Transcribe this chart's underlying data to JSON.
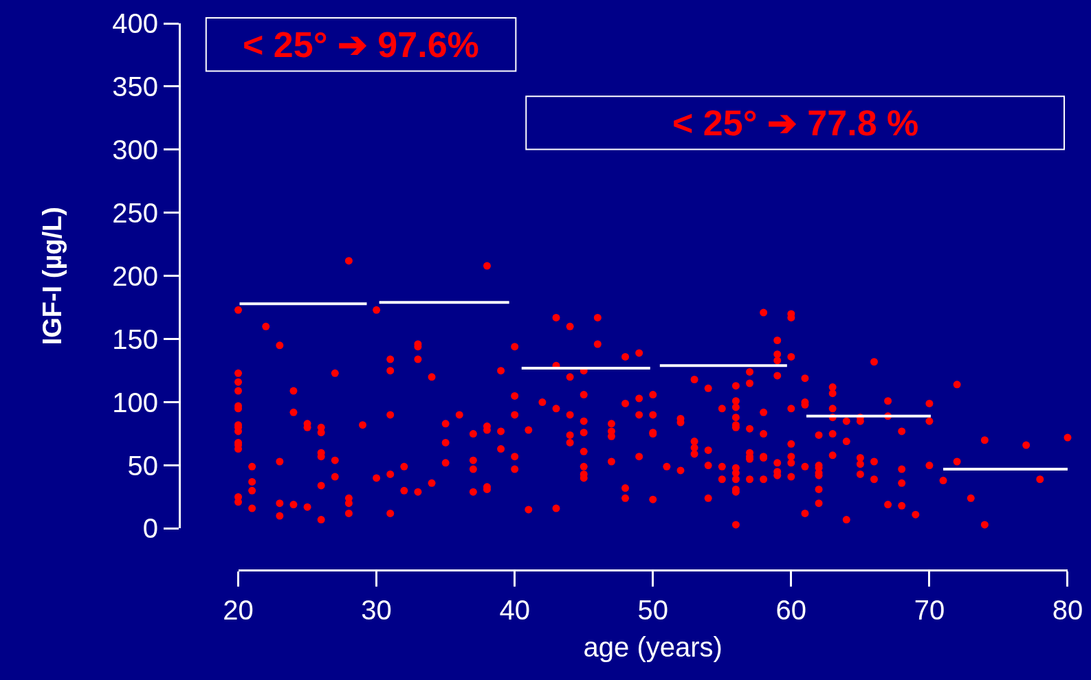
{
  "chart_data": {
    "type": "scatter",
    "xlabel": "age (years)",
    "ylabel": "IGF-I (µg/L)",
    "annotations": [
      "< 25° ➔ 97.6%",
      "< 25° ➔ 77.8 %"
    ],
    "xlim": [
      20,
      80
    ],
    "xticks": [
      20,
      30,
      40,
      50,
      60,
      70,
      80
    ],
    "ylim": [
      0,
      400
    ],
    "yticks": [
      0,
      50,
      100,
      150,
      200,
      250,
      300,
      350,
      400
    ],
    "grid": false,
    "series": [
      {
        "marker": "circle",
        "color": "#ff0000",
        "x": [
          20,
          20,
          20,
          20,
          20,
          20,
          20,
          20,
          20,
          20,
          20,
          20,
          20,
          20,
          21,
          21,
          21,
          21,
          22,
          23,
          23,
          23,
          23,
          24,
          24,
          24,
          25,
          25,
          25,
          26,
          26,
          26,
          26,
          26,
          26,
          27,
          27,
          27,
          28,
          28,
          28,
          28,
          29,
          30,
          30,
          31,
          31,
          31,
          31,
          31,
          32,
          32,
          33,
          33,
          33,
          33,
          34,
          34,
          35,
          35,
          35,
          36,
          37,
          37,
          37,
          37,
          38,
          38,
          38,
          38,
          38,
          39,
          39,
          39,
          40,
          40,
          40,
          40,
          40,
          41,
          41,
          42,
          43,
          43,
          43,
          43,
          44,
          44,
          44,
          44,
          44,
          45,
          45,
          45,
          45,
          45,
          45,
          45,
          45,
          46,
          46,
          47,
          47,
          47,
          47,
          48,
          48,
          48,
          48,
          49,
          49,
          49,
          49,
          50,
          50,
          50,
          50,
          50,
          51,
          52,
          52,
          52,
          53,
          53,
          53,
          53,
          54,
          54,
          54,
          54,
          55,
          55,
          55,
          56,
          56,
          56,
          56,
          56,
          56,
          56,
          56,
          56,
          56,
          56,
          56,
          57,
          57,
          57,
          57,
          57,
          57,
          57,
          58,
          58,
          58,
          58,
          58,
          58,
          59,
          59,
          59,
          59,
          59,
          59,
          59,
          60,
          60,
          60,
          60,
          60,
          60,
          60,
          60,
          61,
          61,
          61,
          61,
          61,
          62,
          62,
          62,
          62,
          62,
          62,
          62,
          63,
          63,
          63,
          63,
          63,
          63,
          64,
          64,
          64,
          65,
          65,
          65,
          65,
          65,
          66,
          66,
          66,
          67,
          67,
          67,
          68,
          68,
          68,
          68,
          69,
          70,
          70,
          70,
          71,
          72,
          72,
          73,
          74,
          74,
          77,
          78,
          80
        ],
        "values": [
          173,
          123,
          116,
          109,
          97,
          95,
          82,
          80,
          77,
          68,
          66,
          63,
          25,
          21,
          49,
          37,
          30,
          16,
          160,
          145,
          53,
          20,
          10,
          109,
          92,
          19,
          83,
          80,
          17,
          80,
          76,
          60,
          57,
          34,
          7,
          123,
          54,
          41,
          212,
          24,
          20,
          12,
          82,
          173,
          40,
          134,
          125,
          90,
          43,
          12,
          49,
          30,
          146,
          144,
          134,
          29,
          120,
          36,
          83,
          68,
          52,
          90,
          75,
          54,
          47,
          29,
          208,
          81,
          78,
          33,
          31,
          125,
          77,
          63,
          144,
          105,
          90,
          57,
          47,
          78,
          15,
          100,
          167,
          129,
          95,
          16,
          160,
          120,
          90,
          74,
          68,
          125,
          106,
          85,
          76,
          61,
          49,
          43,
          40,
          167,
          146,
          83,
          77,
          73,
          53,
          136,
          99,
          32,
          24,
          139,
          103,
          90,
          57,
          106,
          90,
          76,
          75,
          23,
          49,
          87,
          84,
          46,
          118,
          69,
          64,
          59,
          111,
          62,
          50,
          24,
          95,
          49,
          39,
          113,
          101,
          96,
          88,
          82,
          80,
          48,
          44,
          39,
          31,
          29,
          3,
          124,
          115,
          79,
          60,
          57,
          55,
          39,
          171,
          92,
          75,
          57,
          56,
          39,
          149,
          138,
          133,
          121,
          52,
          45,
          42,
          170,
          167,
          136,
          95,
          67,
          57,
          52,
          41,
          119,
          100,
          98,
          49,
          12,
          74,
          50,
          48,
          44,
          42,
          31,
          20,
          112,
          107,
          95,
          88,
          75,
          58,
          85,
          69,
          7,
          88,
          85,
          56,
          51,
          43,
          132,
          53,
          39,
          101,
          89,
          19,
          77,
          47,
          36,
          18,
          11,
          99,
          85,
          50,
          38,
          114,
          53,
          24,
          70,
          3,
          66,
          39,
          72
        ]
      },
      {
        "type": "line",
        "marker": "none",
        "color": "#ffffff",
        "x": [
          20.1,
          29.3
        ],
        "values": [
          178,
          178
        ]
      },
      {
        "type": "line",
        "marker": "none",
        "color": "#ffffff",
        "x": [
          30.2,
          39.6
        ],
        "values": [
          179,
          179
        ]
      },
      {
        "type": "line",
        "marker": "none",
        "color": "#ffffff",
        "x": [
          40.5,
          49.8
        ],
        "values": [
          127,
          127
        ]
      },
      {
        "type": "line",
        "marker": "none",
        "color": "#ffffff",
        "x": [
          50.5,
          59.7
        ],
        "values": [
          129,
          129
        ]
      },
      {
        "type": "line",
        "marker": "none",
        "color": "#ffffff",
        "x": [
          61.1,
          70.1
        ],
        "values": [
          89,
          89
        ]
      },
      {
        "type": "line",
        "marker": "none",
        "color": "#ffffff",
        "x": [
          71,
          80
        ],
        "values": [
          47,
          47
        ]
      }
    ]
  }
}
